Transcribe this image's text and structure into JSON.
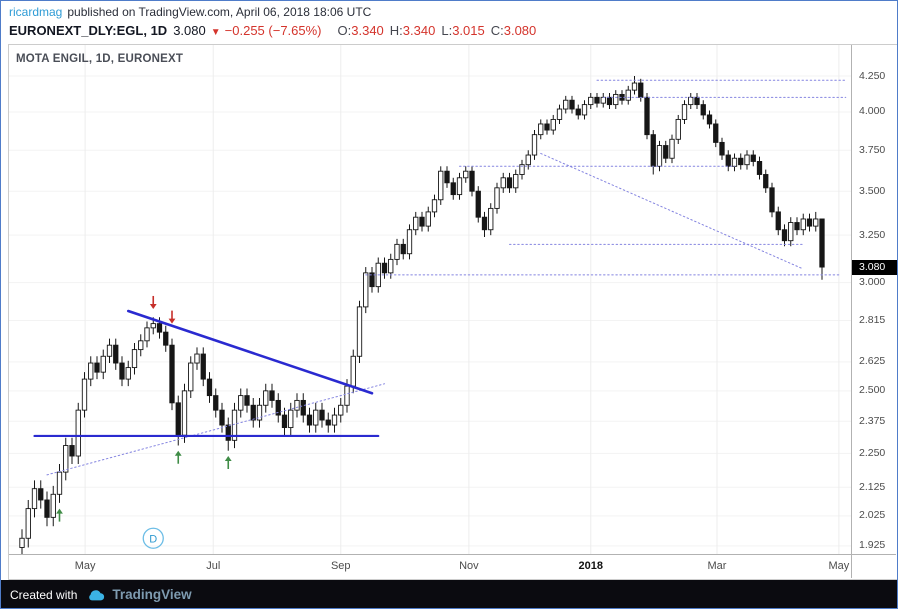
{
  "header": {
    "author": "ricardmag",
    "published": "published on TradingView.com, April 06, 2018 18:06 UTC",
    "symbol": "EURONEXT_DLY:EGL, 1D",
    "last": "3.080",
    "direction": "▼",
    "change": "−0.255 (−7.65%)",
    "ohlc": [
      {
        "k": "O:",
        "v": "3.340"
      },
      {
        "k": "H:",
        "v": "3.340"
      },
      {
        "k": "L:",
        "v": "3.015"
      },
      {
        "k": "C:",
        "v": "3.080"
      }
    ]
  },
  "watermark": "MOTA ENGIL, 1D, EURONEXT",
  "footer": {
    "created_with": "Created with",
    "brand": "TradingView"
  },
  "colors": {
    "accent_red": "#d4342c",
    "author_blue": "#2f9cd6",
    "line_blue": "#2a2ad0",
    "dotted_blue": "#8484e0",
    "red_arrow": "#c62f2a",
    "green_arrow": "#3f8c46",
    "tag_bg": "#000000",
    "tag_text": "#ffffff",
    "cloud_blue": "#3bb3e4",
    "brand_text": "#7e9bb0",
    "footer_bg": "#0b0b10",
    "frame_blue": "#4f7cc9",
    "candle": "#161616"
  },
  "chart_data": {
    "type": "candlestick",
    "title": "MOTA ENGIL, 1D, EURONEXT",
    "scale": "log",
    "grid": true,
    "y_domain": {
      "top": 4.478,
      "bottom": 1.899
    },
    "layout": {
      "x0": 13,
      "spacing": 6.25,
      "candle_width": 4.4
    },
    "y_ticks": [
      {
        "label": "4.250",
        "p": 4.25
      },
      {
        "label": "4.000",
        "p": 4.0
      },
      {
        "label": "3.750",
        "p": 3.75
      },
      {
        "label": "3.500",
        "p": 3.5
      },
      {
        "label": "3.250",
        "p": 3.25
      },
      {
        "label": "3.000",
        "p": 3.0
      },
      {
        "label": "2.815",
        "p": 2.815
      },
      {
        "label": "2.625",
        "p": 2.625
      },
      {
        "label": "2.500",
        "p": 2.5
      },
      {
        "label": "2.375",
        "p": 2.375
      },
      {
        "label": "2.250",
        "p": 2.25
      },
      {
        "label": "2.125",
        "p": 2.125
      },
      {
        "label": "2.025",
        "p": 2.025
      },
      {
        "label": "1.925",
        "p": 1.925
      }
    ],
    "x_ticks": [
      {
        "label": "May",
        "i": 10.1
      },
      {
        "label": "Jul",
        "i": 30.6
      },
      {
        "label": "Sep",
        "i": 51.0
      },
      {
        "label": "Nov",
        "i": 71.5
      },
      {
        "label": "2018",
        "i": 91.0,
        "bold": true
      },
      {
        "label": "Mar",
        "i": 111.2
      },
      {
        "label": "May",
        "i": 130.7
      }
    ],
    "last_price": {
      "label": "3.080",
      "value": 3.08
    },
    "candles": [
      [
        1.92,
        1.98,
        1.89,
        1.95
      ],
      [
        1.95,
        2.08,
        1.92,
        2.05
      ],
      [
        2.05,
        2.15,
        2.02,
        2.12
      ],
      [
        2.12,
        2.15,
        2.05,
        2.08
      ],
      [
        2.08,
        2.11,
        1.99,
        2.02
      ],
      [
        2.02,
        2.13,
        1.99,
        2.1
      ],
      [
        2.1,
        2.21,
        2.07,
        2.18
      ],
      [
        2.18,
        2.31,
        2.15,
        2.28
      ],
      [
        2.28,
        2.31,
        2.21,
        2.24
      ],
      [
        2.24,
        2.45,
        2.21,
        2.42
      ],
      [
        2.42,
        2.58,
        2.39,
        2.55
      ],
      [
        2.55,
        2.65,
        2.52,
        2.62
      ],
      [
        2.62,
        2.65,
        2.55,
        2.58
      ],
      [
        2.58,
        2.68,
        2.55,
        2.65
      ],
      [
        2.65,
        2.73,
        2.62,
        2.7
      ],
      [
        2.7,
        2.73,
        2.59,
        2.62
      ],
      [
        2.62,
        2.65,
        2.52,
        2.55
      ],
      [
        2.55,
        2.63,
        2.52,
        2.6
      ],
      [
        2.6,
        2.71,
        2.57,
        2.68
      ],
      [
        2.68,
        2.75,
        2.65,
        2.72
      ],
      [
        2.72,
        2.81,
        2.69,
        2.78
      ],
      [
        2.78,
        2.83,
        2.75,
        2.8
      ],
      [
        2.8,
        2.83,
        2.73,
        2.76
      ],
      [
        2.76,
        2.79,
        2.67,
        2.7
      ],
      [
        2.7,
        2.73,
        2.42,
        2.45
      ],
      [
        2.45,
        2.48,
        2.28,
        2.32
      ],
      [
        2.32,
        2.53,
        2.29,
        2.5
      ],
      [
        2.5,
        2.65,
        2.47,
        2.62
      ],
      [
        2.62,
        2.69,
        2.59,
        2.66
      ],
      [
        2.66,
        2.69,
        2.52,
        2.55
      ],
      [
        2.55,
        2.58,
        2.45,
        2.48
      ],
      [
        2.48,
        2.51,
        2.39,
        2.42
      ],
      [
        2.42,
        2.45,
        2.33,
        2.36
      ],
      [
        2.36,
        2.39,
        2.26,
        2.3
      ],
      [
        2.3,
        2.45,
        2.27,
        2.42
      ],
      [
        2.42,
        2.51,
        2.39,
        2.48
      ],
      [
        2.48,
        2.51,
        2.41,
        2.44
      ],
      [
        2.44,
        2.47,
        2.35,
        2.38
      ],
      [
        2.38,
        2.47,
        2.35,
        2.44
      ],
      [
        2.44,
        2.53,
        2.41,
        2.5
      ],
      [
        2.5,
        2.53,
        2.43,
        2.46
      ],
      [
        2.46,
        2.49,
        2.37,
        2.4
      ],
      [
        2.4,
        2.43,
        2.32,
        2.35
      ],
      [
        2.35,
        2.45,
        2.32,
        2.42
      ],
      [
        2.42,
        2.49,
        2.39,
        2.46
      ],
      [
        2.46,
        2.49,
        2.37,
        2.4
      ],
      [
        2.4,
        2.43,
        2.33,
        2.36
      ],
      [
        2.36,
        2.45,
        2.33,
        2.42
      ],
      [
        2.42,
        2.45,
        2.35,
        2.38
      ],
      [
        2.38,
        2.41,
        2.33,
        2.36
      ],
      [
        2.36,
        2.43,
        2.33,
        2.4
      ],
      [
        2.4,
        2.47,
        2.37,
        2.44
      ],
      [
        2.44,
        2.55,
        2.41,
        2.52
      ],
      [
        2.52,
        2.68,
        2.49,
        2.65
      ],
      [
        2.65,
        2.91,
        2.62,
        2.88
      ],
      [
        2.88,
        3.08,
        2.85,
        3.05
      ],
      [
        3.05,
        3.08,
        2.95,
        2.98
      ],
      [
        2.98,
        3.13,
        2.95,
        3.1
      ],
      [
        3.1,
        3.13,
        3.02,
        3.05
      ],
      [
        3.05,
        3.15,
        3.02,
        3.12
      ],
      [
        3.12,
        3.23,
        3.09,
        3.2
      ],
      [
        3.2,
        3.23,
        3.12,
        3.15
      ],
      [
        3.15,
        3.31,
        3.12,
        3.28
      ],
      [
        3.28,
        3.38,
        3.25,
        3.35
      ],
      [
        3.35,
        3.38,
        3.27,
        3.3
      ],
      [
        3.3,
        3.41,
        3.27,
        3.38
      ],
      [
        3.38,
        3.48,
        3.35,
        3.45
      ],
      [
        3.45,
        3.65,
        3.42,
        3.62
      ],
      [
        3.62,
        3.65,
        3.52,
        3.55
      ],
      [
        3.55,
        3.58,
        3.45,
        3.48
      ],
      [
        3.48,
        3.61,
        3.45,
        3.58
      ],
      [
        3.58,
        3.65,
        3.55,
        3.62
      ],
      [
        3.62,
        3.65,
        3.47,
        3.5
      ],
      [
        3.5,
        3.53,
        3.32,
        3.35
      ],
      [
        3.35,
        3.38,
        3.24,
        3.28
      ],
      [
        3.28,
        3.43,
        3.25,
        3.4
      ],
      [
        3.4,
        3.55,
        3.37,
        3.52
      ],
      [
        3.52,
        3.61,
        3.49,
        3.58
      ],
      [
        3.58,
        3.61,
        3.49,
        3.52
      ],
      [
        3.52,
        3.63,
        3.49,
        3.6
      ],
      [
        3.6,
        3.69,
        3.57,
        3.66
      ],
      [
        3.66,
        3.75,
        3.63,
        3.72
      ],
      [
        3.72,
        3.88,
        3.69,
        3.85
      ],
      [
        3.85,
        3.95,
        3.82,
        3.92
      ],
      [
        3.92,
        3.95,
        3.85,
        3.88
      ],
      [
        3.88,
        3.98,
        3.85,
        3.95
      ],
      [
        3.95,
        4.05,
        3.92,
        4.02
      ],
      [
        4.02,
        4.11,
        3.99,
        4.08
      ],
      [
        4.08,
        4.11,
        3.99,
        4.02
      ],
      [
        4.02,
        4.05,
        3.95,
        3.98
      ],
      [
        3.98,
        4.08,
        3.95,
        4.05
      ],
      [
        4.05,
        4.13,
        4.02,
        4.1
      ],
      [
        4.1,
        4.13,
        4.03,
        4.06
      ],
      [
        4.06,
        4.13,
        4.03,
        4.1
      ],
      [
        4.1,
        4.13,
        4.02,
        4.05
      ],
      [
        4.05,
        4.15,
        4.02,
        4.12
      ],
      [
        4.12,
        4.15,
        4.05,
        4.08
      ],
      [
        4.08,
        4.18,
        4.05,
        4.15
      ],
      [
        4.15,
        4.25,
        4.12,
        4.2
      ],
      [
        4.2,
        4.23,
        4.07,
        4.1
      ],
      [
        4.1,
        4.13,
        3.82,
        3.85
      ],
      [
        3.85,
        3.88,
        3.6,
        3.65
      ],
      [
        3.65,
        3.81,
        3.62,
        3.78
      ],
      [
        3.78,
        3.81,
        3.67,
        3.7
      ],
      [
        3.7,
        3.85,
        3.67,
        3.82
      ],
      [
        3.82,
        3.98,
        3.79,
        3.95
      ],
      [
        3.95,
        4.08,
        3.92,
        4.05
      ],
      [
        4.05,
        4.13,
        4.02,
        4.1
      ],
      [
        4.1,
        4.13,
        4.02,
        4.05
      ],
      [
        4.05,
        4.08,
        3.95,
        3.98
      ],
      [
        3.98,
        4.01,
        3.89,
        3.92
      ],
      [
        3.92,
        3.95,
        3.77,
        3.8
      ],
      [
        3.8,
        3.83,
        3.69,
        3.72
      ],
      [
        3.72,
        3.75,
        3.62,
        3.65
      ],
      [
        3.65,
        3.73,
        3.62,
        3.7
      ],
      [
        3.7,
        3.73,
        3.63,
        3.66
      ],
      [
        3.66,
        3.75,
        3.63,
        3.72
      ],
      [
        3.72,
        3.75,
        3.65,
        3.68
      ],
      [
        3.68,
        3.71,
        3.57,
        3.6
      ],
      [
        3.6,
        3.63,
        3.49,
        3.52
      ],
      [
        3.52,
        3.55,
        3.35,
        3.38
      ],
      [
        3.38,
        3.41,
        3.25,
        3.28
      ],
      [
        3.28,
        3.31,
        3.19,
        3.22
      ],
      [
        3.22,
        3.35,
        3.19,
        3.32
      ],
      [
        3.32,
        3.35,
        3.25,
        3.28
      ],
      [
        3.28,
        3.37,
        3.25,
        3.34
      ],
      [
        3.34,
        3.37,
        3.27,
        3.3
      ],
      [
        3.3,
        3.38,
        3.27,
        3.34
      ],
      [
        3.34,
        3.34,
        3.015,
        3.08
      ]
    ],
    "drawings": {
      "trendline": {
        "from": {
          "i": 17,
          "p": 2.86
        },
        "to": {
          "i": 56,
          "p": 2.49
        }
      },
      "support_line": {
        "from": {
          "i": 2,
          "p": 2.317
        },
        "to": {
          "i": 57,
          "p": 2.317
        }
      },
      "dotted_lines": [
        {
          "from": {
            "i": 4,
            "p": 2.17
          },
          "to": {
            "i": 58,
            "p": 2.53
          }
        },
        {
          "from": {
            "i": 55,
            "p": 3.04
          },
          "to": {
            "i": 131,
            "p": 3.04
          }
        },
        {
          "from": {
            "i": 78,
            "p": 3.2
          },
          "to": {
            "i": 125,
            "p": 3.2
          }
        },
        {
          "from": {
            "i": 70,
            "p": 3.65
          },
          "to": {
            "i": 114,
            "p": 3.65
          }
        },
        {
          "from": {
            "i": 93,
            "p": 4.1
          },
          "to": {
            "i": 131.8,
            "p": 4.1
          }
        },
        {
          "from": {
            "i": 92,
            "p": 4.22
          },
          "to": {
            "i": 131.8,
            "p": 4.22
          }
        },
        {
          "from": {
            "i": 83,
            "p": 3.73
          },
          "to": {
            "i": 125,
            "p": 3.07
          }
        }
      ],
      "red_arrows": [
        {
          "i": 21,
          "p": 2.87
        },
        {
          "i": 24,
          "p": 2.8
        }
      ],
      "green_arrows": [
        {
          "i": 6,
          "p": 2.05
        },
        {
          "i": 25,
          "p": 2.26
        },
        {
          "i": 33,
          "p": 2.24
        }
      ],
      "d_marker": {
        "i": 21,
        "p": 1.95,
        "label": "D"
      }
    }
  }
}
